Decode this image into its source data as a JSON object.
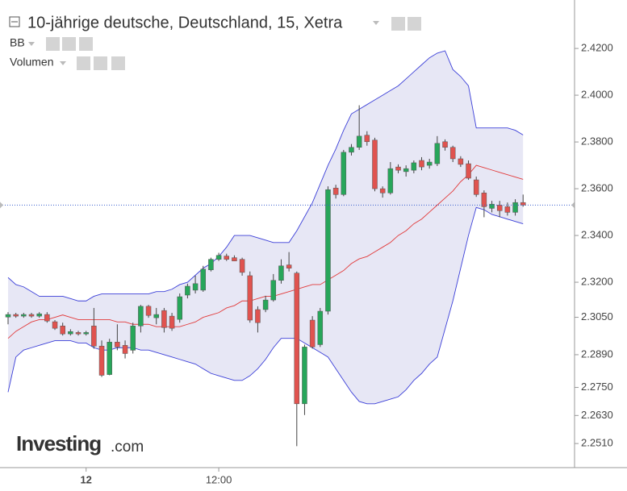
{
  "chart_data": {
    "type": "candlestick",
    "title": "10-jährige deutsche, Deutschland, 15, Xetra",
    "indicators": [
      "BB",
      "Volumen"
    ],
    "logo": "Investing",
    "logo_suffix": ".com",
    "categories": [
      null,
      null,
      null,
      null,
      null,
      null,
      null,
      null,
      null,
      null,
      null,
      null,
      null,
      null,
      null,
      null,
      null,
      null,
      null,
      null,
      null,
      null,
      null,
      null,
      null,
      null,
      null,
      null,
      null,
      null,
      null,
      null,
      null,
      null,
      null,
      null,
      null,
      null,
      null,
      null,
      null,
      null,
      null,
      null,
      null,
      null,
      null,
      null,
      null,
      null,
      null,
      null,
      null,
      null,
      null,
      null,
      null,
      null,
      null,
      null,
      null,
      null,
      null,
      null,
      null,
      null,
      null
    ],
    "open": [
      2.3051,
      2.3062,
      2.3055,
      2.3062,
      2.3055,
      2.3062,
      2.3031,
      2.3013,
      2.2979,
      2.2985,
      2.2979,
      2.3013,
      2.2927,
      2.2805,
      2.2944,
      2.293,
      2.2909,
      2.3013,
      2.3097,
      2.3048,
      2.3079,
      2.3055,
      2.3041,
      2.3145,
      2.3166,
      2.3166,
      2.3253,
      2.3298,
      2.3312,
      2.3305,
      2.3298,
      2.3228,
      2.3083,
      2.3083,
      2.3124,
      2.3208,
      2.3274,
      2.3239,
      2.268,
      2.3038,
      2.2933,
      2.3076,
      2.3603,
      2.3575,
      2.3756,
      2.3777,
      2.3829,
      2.3808,
      2.36,
      2.3582,
      2.3693,
      2.3673,
      2.3679,
      2.3721,
      2.37,
      2.3707,
      2.3801,
      2.3777,
      2.3728,
      2.3707,
      2.3638,
      2.3582,
      2.3516,
      2.353,
      2.3523,
      2.3499,
      2.3541
    ],
    "high": [
      2.3072,
      2.3069,
      2.3069,
      2.3069,
      2.3072,
      2.3072,
      2.3038,
      2.3027,
      2.2999,
      2.2992,
      2.2992,
      2.309,
      2.2951,
      2.2958,
      2.302,
      2.2951,
      2.3027,
      2.3103,
      2.3103,
      2.309,
      2.309,
      2.3069,
      2.3152,
      2.3194,
      2.3228,
      2.327,
      2.3305,
      2.3326,
      2.3322,
      2.3315,
      2.3305,
      2.3246,
      2.3097,
      2.3142,
      2.3235,
      2.3298,
      2.3329,
      2.3246,
      2.2933,
      2.3055,
      2.309,
      2.361,
      2.3617,
      2.3766,
      2.3791,
      2.3957,
      2.3846,
      2.3818,
      2.361,
      2.3714,
      2.3704,
      2.37,
      2.3721,
      2.3735,
      2.3728,
      2.3825,
      2.3811,
      2.3784,
      2.3739,
      2.3721,
      2.3652,
      2.3593,
      2.3548,
      2.3548,
      2.3541,
      2.3555,
      2.3575
    ],
    "low": [
      2.302,
      2.3048,
      2.3048,
      2.3048,
      2.3048,
      2.3027,
      2.2996,
      2.2972,
      2.2972,
      2.2972,
      2.2972,
      2.2916,
      2.2795,
      2.2802,
      2.2909,
      2.2874,
      2.2895,
      2.2985,
      2.3048,
      2.302,
      2.2985,
      2.2992,
      2.3027,
      2.3131,
      2.3152,
      2.3159,
      2.3246,
      2.3291,
      2.3291,
      2.3291,
      2.3228,
      2.3027,
      2.2985,
      2.3072,
      2.3117,
      2.3194,
      2.3246,
      2.2499,
      2.2632,
      2.2916,
      2.2923,
      2.3062,
      2.3558,
      2.3568,
      2.3742,
      2.3766,
      2.3784,
      2.3589,
      2.3562,
      2.3575,
      2.3666,
      2.3652,
      2.3666,
      2.3679,
      2.3686,
      2.3697,
      2.3763,
      2.3714,
      2.3693,
      2.3638,
      2.3565,
      2.3478,
      2.3499,
      2.3478,
      2.3485,
      2.3485,
      2.3523
    ],
    "close": [
      2.3062,
      2.3055,
      2.3062,
      2.3055,
      2.3065,
      2.3034,
      2.3003,
      2.2979,
      2.2989,
      2.2979,
      2.2985,
      2.2927,
      2.2802,
      2.2944,
      2.2923,
      2.2895,
      2.3013,
      2.3097,
      2.3058,
      2.3062,
      2.3006,
      2.3003,
      2.3138,
      2.3183,
      2.3194,
      2.3256,
      2.3298,
      2.3315,
      2.3298,
      2.3291,
      2.3242,
      2.3038,
      2.3027,
      2.3124,
      2.3208,
      2.327,
      2.326,
      2.268,
      2.2923,
      2.2923,
      2.3076,
      2.3596,
      2.3575,
      2.3756,
      2.3777,
      2.3825,
      2.3801,
      2.36,
      2.3582,
      2.3686,
      2.3679,
      2.3686,
      2.3711,
      2.3693,
      2.3714,
      2.3794,
      2.3777,
      2.3728,
      2.3704,
      2.3645,
      2.3575,
      2.3523,
      2.3534,
      2.3506,
      2.3499,
      2.3541,
      2.353
    ],
    "up_color": "#27a65a",
    "down_color": "#e0534f",
    "bands": {
      "line_color": "#3b3fd8",
      "middle_color": "#e23a3a",
      "fill": "#e4e4f4",
      "upper": [
        2.322,
        2.319,
        2.318,
        2.316,
        2.314,
        2.314,
        2.314,
        2.314,
        2.313,
        2.312,
        2.312,
        2.314,
        2.315,
        2.315,
        2.315,
        2.315,
        2.315,
        2.315,
        2.315,
        2.316,
        2.316,
        2.317,
        2.319,
        2.32,
        2.323,
        2.326,
        2.328,
        2.331,
        2.335,
        2.34,
        2.34,
        2.34,
        2.339,
        2.338,
        2.337,
        2.337,
        2.337,
        2.342,
        2.348,
        2.354,
        2.362,
        2.37,
        2.377,
        2.385,
        2.392,
        2.394,
        2.396,
        2.398,
        2.4,
        2.402,
        2.404,
        2.407,
        2.41,
        2.413,
        2.416,
        2.418,
        2.419,
        2.411,
        2.408,
        2.404,
        2.386,
        2.386,
        2.386,
        2.386,
        2.386,
        2.385,
        2.383
      ],
      "middle": [
        2.296,
        2.299,
        2.301,
        2.303,
        2.304,
        2.304,
        2.305,
        2.306,
        2.305,
        2.304,
        2.304,
        2.304,
        2.304,
        2.304,
        2.303,
        2.303,
        2.302,
        2.302,
        2.302,
        2.301,
        2.301,
        2.301,
        2.301,
        2.302,
        2.303,
        2.305,
        2.306,
        2.307,
        2.309,
        2.31,
        2.312,
        2.312,
        2.313,
        2.314,
        2.314,
        2.315,
        2.316,
        2.317,
        2.318,
        2.319,
        2.319,
        2.321,
        2.323,
        2.325,
        2.328,
        2.33,
        2.331,
        2.333,
        2.335,
        2.337,
        2.34,
        2.342,
        2.345,
        2.347,
        2.35,
        2.353,
        2.356,
        2.359,
        2.363,
        2.366,
        2.37,
        2.369,
        2.368,
        2.367,
        2.366,
        2.365,
        2.364
      ],
      "lower": [
        2.273,
        2.288,
        2.291,
        2.292,
        2.293,
        2.294,
        2.295,
        2.295,
        2.295,
        2.294,
        2.294,
        2.292,
        2.291,
        2.291,
        2.292,
        2.292,
        2.292,
        2.291,
        2.291,
        2.29,
        2.289,
        2.288,
        2.287,
        2.286,
        2.285,
        2.283,
        2.281,
        2.28,
        2.279,
        2.278,
        2.278,
        2.28,
        2.283,
        2.287,
        2.292,
        2.296,
        2.296,
        2.296,
        2.294,
        2.292,
        2.29,
        2.288,
        2.283,
        2.278,
        2.273,
        2.269,
        2.268,
        2.268,
        2.269,
        2.27,
        2.271,
        2.274,
        2.278,
        2.281,
        2.285,
        2.288,
        2.3,
        2.312,
        2.326,
        2.34,
        2.352,
        2.351,
        2.349,
        2.348,
        2.347,
        2.346,
        2.345
      ]
    },
    "ylim": [
      2.2407,
      2.439
    ],
    "yticks": [
      {
        "value": 2.42,
        "label": "2.4200"
      },
      {
        "value": 2.4,
        "label": "2.4000"
      },
      {
        "value": 2.38,
        "label": "2.3800"
      },
      {
        "value": 2.36,
        "label": "2.3600"
      },
      {
        "value": 2.34,
        "label": "2.3400"
      },
      {
        "value": 2.32,
        "label": "2.3200"
      },
      {
        "value": 2.305,
        "label": "2.3050"
      },
      {
        "value": 2.289,
        "label": "2.2890"
      },
      {
        "value": 2.275,
        "label": "2.2750"
      },
      {
        "value": 2.263,
        "label": "2.2630"
      },
      {
        "value": 2.251,
        "label": "2.2510"
      }
    ],
    "xticks": [
      {
        "value": 10,
        "label": "12"
      },
      {
        "value": 27,
        "label": "12:00"
      }
    ]
  }
}
